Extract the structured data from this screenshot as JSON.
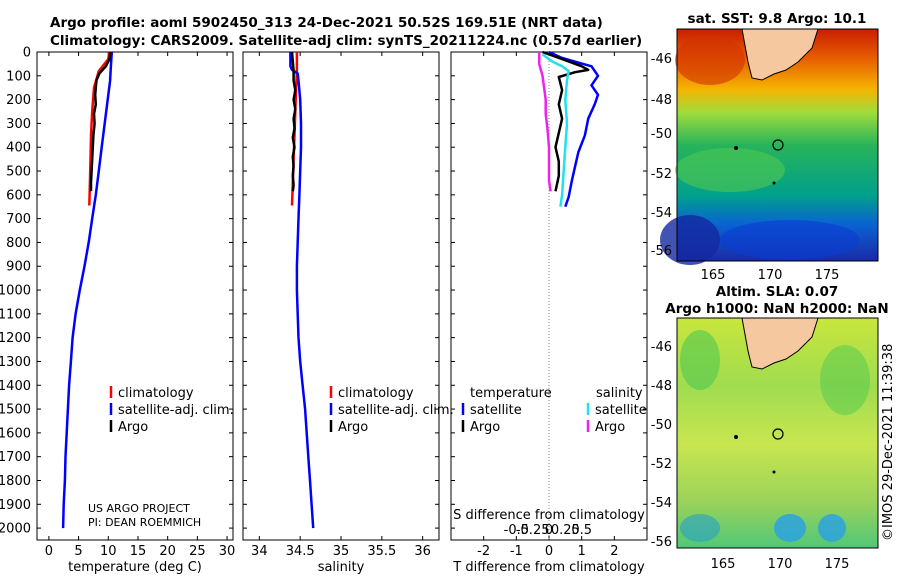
{
  "header": {
    "line1": "Argo profile: aoml 5902450_313 24-Dec-2021 50.52S 169.51E (NRT data)",
    "line2": "Climatology: CARS2009. Satellite-adj clim: synTS_20211224.nc (0.57d earlier)"
  },
  "credit": "©IMOS 29-Dec-2021 11:39:38",
  "project": {
    "line1": "US ARGO PROJECT",
    "line2": "PI: DEAN ROEMMICH"
  },
  "colors": {
    "climatology": "#ff0000",
    "satellite": "#0000ff",
    "argo": "#000000",
    "satellite_s": "#22e0ee",
    "argo_s": "#ee22ee"
  },
  "chart_data": [
    {
      "type": "line",
      "id": "temperature",
      "xlabel": "temperature (deg C)",
      "xlim": [
        -2,
        31
      ],
      "ylim": [
        2050,
        0
      ],
      "xticks": [
        0,
        5,
        10,
        15,
        20,
        25,
        30
      ],
      "yticks": [
        0,
        100,
        200,
        300,
        400,
        500,
        600,
        700,
        800,
        900,
        1000,
        1100,
        1200,
        1300,
        1400,
        1500,
        1600,
        1700,
        1800,
        1900,
        2000
      ],
      "legend": [
        "climatology",
        "satellite-adj. clim.",
        "Argo"
      ],
      "series": [
        {
          "name": "climatology",
          "color": "#ff0000",
          "points": [
            [
              10.2,
              0
            ],
            [
              10.0,
              30
            ],
            [
              8.4,
              80
            ],
            [
              7.6,
              150
            ],
            [
              7.3,
              250
            ],
            [
              7.1,
              350
            ],
            [
              7.0,
              450
            ],
            [
              6.9,
              550
            ],
            [
              6.8,
              645
            ]
          ]
        },
        {
          "name": "satellite-adj. clim.",
          "color": "#0000ff",
          "points": [
            [
              10.6,
              0
            ],
            [
              10.5,
              40
            ],
            [
              10.4,
              80
            ],
            [
              10.3,
              120
            ],
            [
              9.9,
              200
            ],
            [
              9.4,
              300
            ],
            [
              8.9,
              400
            ],
            [
              8.4,
              500
            ],
            [
              7.9,
              600
            ],
            [
              7.3,
              700
            ],
            [
              6.7,
              800
            ],
            [
              6.0,
              900
            ],
            [
              5.2,
              1000
            ],
            [
              4.5,
              1100
            ],
            [
              4.0,
              1200
            ],
            [
              3.7,
              1300
            ],
            [
              3.4,
              1400
            ],
            [
              3.2,
              1500
            ],
            [
              3.0,
              1600
            ],
            [
              2.8,
              1700
            ],
            [
              2.7,
              1800
            ],
            [
              2.5,
              1900
            ],
            [
              2.4,
              2000
            ]
          ]
        },
        {
          "name": "Argo",
          "color": "#000000",
          "points": [
            [
              10.3,
              0
            ],
            [
              10.2,
              30
            ],
            [
              9.6,
              60
            ],
            [
              8.5,
              90
            ],
            [
              8.0,
              120
            ],
            [
              7.8,
              180
            ],
            [
              7.9,
              220
            ],
            [
              7.6,
              260
            ],
            [
              7.7,
              300
            ],
            [
              7.5,
              350
            ],
            [
              7.4,
              400
            ],
            [
              7.3,
              450
            ],
            [
              7.2,
              500
            ],
            [
              7.1,
              550
            ],
            [
              7.1,
              585
            ]
          ]
        }
      ]
    },
    {
      "type": "line",
      "id": "salinity",
      "xlabel": "salinity",
      "xlim": [
        33.8,
        36.2
      ],
      "ylim": [
        2050,
        0
      ],
      "xticks": [
        34,
        34.5,
        35,
        35.5,
        36
      ],
      "xticklabels": [
        "34",
        "34.5",
        "35",
        "35.5",
        "36"
      ],
      "legend": [
        "climatology",
        "satellite-adj. clim.",
        "Argo"
      ],
      "series": [
        {
          "name": "climatology",
          "color": "#ff0000",
          "points": [
            [
              34.46,
              0
            ],
            [
              34.46,
              80
            ],
            [
              34.45,
              150
            ],
            [
              34.44,
              250
            ],
            [
              34.43,
              350
            ],
            [
              34.42,
              450
            ],
            [
              34.41,
              550
            ],
            [
              34.4,
              645
            ]
          ]
        },
        {
          "name": "satellite-adj. clim.",
          "color": "#0000ff",
          "points": [
            [
              34.38,
              0
            ],
            [
              34.38,
              60
            ],
            [
              34.4,
              75
            ],
            [
              34.47,
              90
            ],
            [
              34.48,
              120
            ],
            [
              34.5,
              200
            ],
            [
              34.51,
              300
            ],
            [
              34.51,
              400
            ],
            [
              34.5,
              500
            ],
            [
              34.49,
              600
            ],
            [
              34.48,
              700
            ],
            [
              34.47,
              800
            ],
            [
              34.46,
              900
            ],
            [
              34.46,
              1000
            ],
            [
              34.47,
              1100
            ],
            [
              34.48,
              1200
            ],
            [
              34.5,
              1300
            ],
            [
              34.53,
              1400
            ],
            [
              34.56,
              1500
            ],
            [
              34.58,
              1600
            ],
            [
              34.6,
              1700
            ],
            [
              34.62,
              1800
            ],
            [
              34.64,
              1900
            ],
            [
              34.66,
              2000
            ]
          ]
        },
        {
          "name": "Argo",
          "color": "#000000",
          "points": [
            [
              34.4,
              0
            ],
            [
              34.41,
              40
            ],
            [
              34.42,
              80
            ],
            [
              34.42,
              120
            ],
            [
              34.44,
              160
            ],
            [
              34.42,
              200
            ],
            [
              34.44,
              240
            ],
            [
              34.42,
              280
            ],
            [
              34.43,
              320
            ],
            [
              34.41,
              360
            ],
            [
              34.43,
              400
            ],
            [
              34.41,
              440
            ],
            [
              34.42,
              480
            ],
            [
              34.41,
              520
            ],
            [
              34.42,
              560
            ],
            [
              34.41,
              585
            ]
          ]
        }
      ]
    },
    {
      "type": "line",
      "id": "difference",
      "xlabel": "T difference from climatology",
      "xlabel2": "S difference from climatology",
      "xlim": [
        -3,
        3
      ],
      "ylim": [
        2050,
        0
      ],
      "xticks": [
        -2,
        -1,
        0,
        1,
        2
      ],
      "xticklabels": [
        "-2",
        "-1",
        "0",
        "1",
        "2"
      ],
      "sxticks": [
        -1,
        -0.5,
        0,
        0.5,
        1
      ],
      "sxticklabels": [
        "-0.5",
        "-0.25",
        "0",
        "0.25",
        "0.5"
      ],
      "legend_temperature_title": "temperature",
      "legend_salinity_title": "salinity",
      "legend_temperature": [
        "satellite",
        "Argo"
      ],
      "legend_salinity": [
        "satellite",
        "Argo"
      ],
      "series": [
        {
          "name": "T satellite",
          "color": "#0000ff",
          "points": [
            [
              0.0,
              0
            ],
            [
              0.4,
              25
            ],
            [
              1.3,
              60
            ],
            [
              1.5,
              100
            ],
            [
              1.3,
              140
            ],
            [
              1.5,
              180
            ],
            [
              1.4,
              220
            ],
            [
              1.2,
              280
            ],
            [
              1.1,
              350
            ],
            [
              0.9,
              420
            ],
            [
              0.8,
              480
            ],
            [
              0.7,
              540
            ],
            [
              0.6,
              610
            ],
            [
              0.5,
              650
            ]
          ]
        },
        {
          "name": "T Argo",
          "color": "#000000",
          "points": [
            [
              -0.2,
              0
            ],
            [
              0.4,
              30
            ],
            [
              1.0,
              60
            ],
            [
              1.2,
              75
            ],
            [
              0.8,
              85
            ],
            [
              0.3,
              105
            ],
            [
              0.4,
              160
            ],
            [
              0.3,
              220
            ],
            [
              0.4,
              280
            ],
            [
              0.3,
              340
            ],
            [
              0.2,
              400
            ],
            [
              0.3,
              460
            ],
            [
              0.3,
              520
            ],
            [
              0.2,
              585
            ]
          ]
        },
        {
          "name": "S satellite",
          "color": "#22e0ee",
          "points": [
            [
              -0.2,
              10
            ],
            [
              0.1,
              40
            ],
            [
              0.4,
              60
            ],
            [
              0.6,
              80
            ],
            [
              0.55,
              120
            ],
            [
              0.5,
              200
            ],
            [
              0.55,
              300
            ],
            [
              0.5,
              400
            ],
            [
              0.45,
              500
            ],
            [
              0.4,
              600
            ],
            [
              0.35,
              650
            ]
          ]
        },
        {
          "name": "S Argo",
          "color": "#ee22ee",
          "points": [
            [
              -0.3,
              0
            ],
            [
              -0.3,
              50
            ],
            [
              -0.2,
              100
            ],
            [
              -0.15,
              150
            ],
            [
              -0.1,
              200
            ],
            [
              -0.1,
              260
            ],
            [
              -0.05,
              320
            ],
            [
              0.0,
              400
            ],
            [
              0.0,
              480
            ],
            [
              0.0,
              540
            ],
            [
              0.05,
              585
            ]
          ]
        }
      ]
    }
  ],
  "maps": [
    {
      "id": "sst",
      "title": "sat. SST: 9.8 Argo: 10.1",
      "yticks": [
        "-46",
        "-48",
        "-50",
        "-52",
        "-54",
        "-56"
      ],
      "xticks": [
        "165",
        "170",
        "175"
      ]
    },
    {
      "id": "sla",
      "title1": "Altim. SLA: 0.07",
      "title2": "Argo h1000: NaN h2000: NaN",
      "yticks": [
        "-46",
        "-48",
        "-50",
        "-52",
        "-54",
        "-56"
      ],
      "xticks": [
        "165",
        "170",
        "175"
      ]
    }
  ]
}
